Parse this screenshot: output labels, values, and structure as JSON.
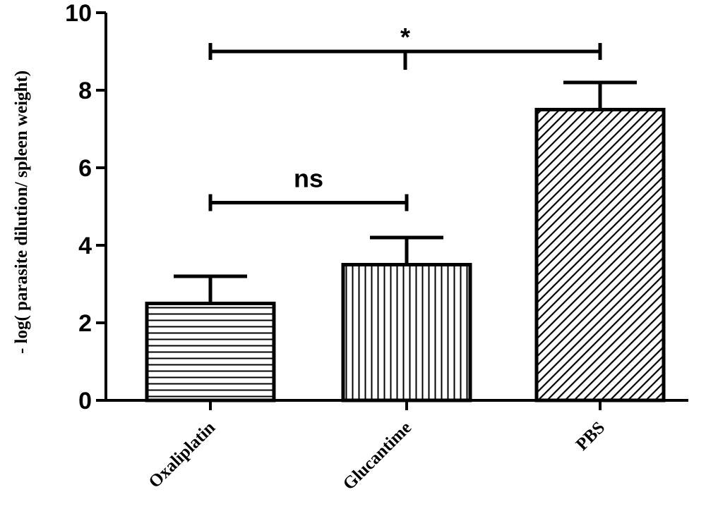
{
  "chart_data": {
    "type": "bar",
    "categories": [
      "Oxaliplatin",
      "Glucantime",
      "PBS"
    ],
    "values": [
      2.5,
      3.5,
      7.5
    ],
    "error_upper": [
      0.7,
      0.7,
      0.7
    ],
    "patterns": [
      "horizontal-lines",
      "vertical-lines",
      "diagonal-lines"
    ],
    "ylabel": "- log( parasite dilution/  spleen weight)",
    "ylim": [
      0,
      10
    ],
    "yticks": [
      "0",
      "2",
      "4",
      "6",
      "8",
      "10"
    ],
    "grid": false,
    "annotations": [
      {
        "label": "ns",
        "from": "Oxaliplatin",
        "to": "Glucantime",
        "y": 5.1
      },
      {
        "label": "*",
        "from": "Oxaliplatin",
        "to": "PBS",
        "y": 9.0
      }
    ],
    "colors": {
      "ink": "#000000",
      "fill": "#ffffff"
    }
  }
}
